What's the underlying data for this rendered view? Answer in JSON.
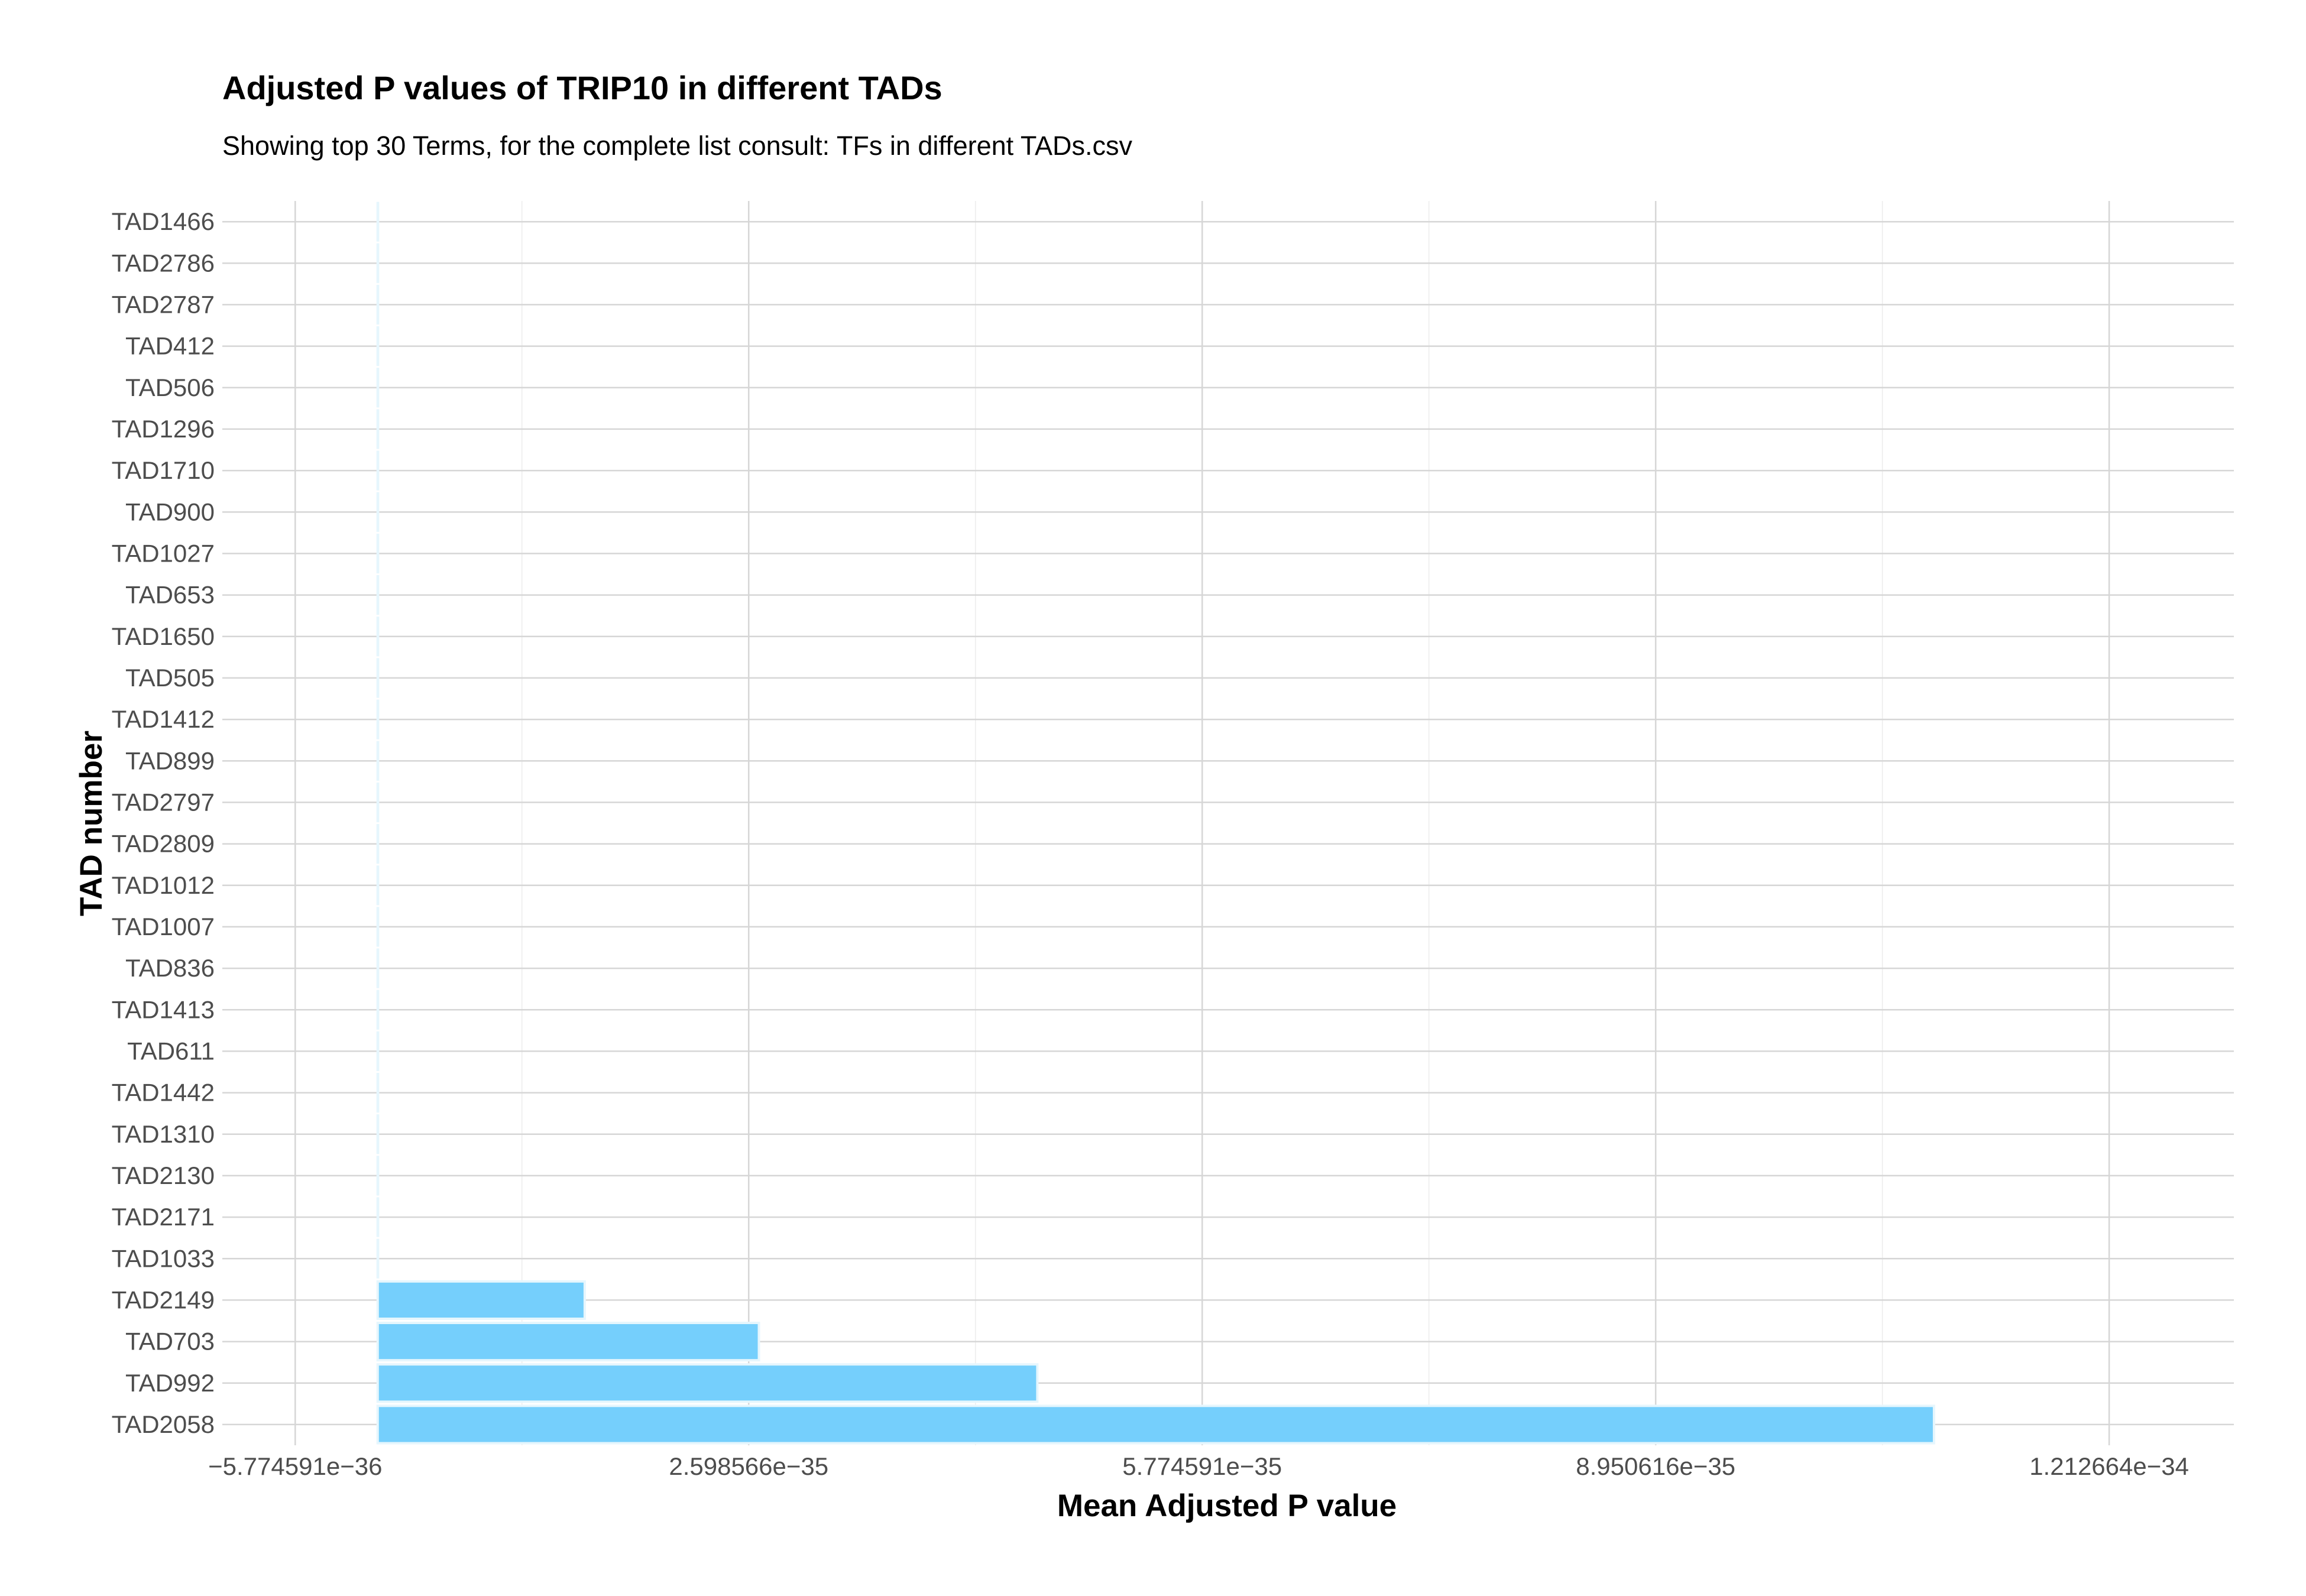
{
  "chart_data": {
    "type": "bar",
    "orientation": "horizontal",
    "title": "Adjusted P values of TRIP10 in different TADs",
    "subtitle": "Showing top 30 Terms, for the complete list consult: TFs in different TADs.csv",
    "xlabel": "Mean Adjusted P value",
    "ylabel": "TAD number",
    "categories": [
      "TAD1466",
      "TAD2786",
      "TAD2787",
      "TAD412",
      "TAD506",
      "TAD1296",
      "TAD1710",
      "TAD900",
      "TAD1027",
      "TAD653",
      "TAD1650",
      "TAD505",
      "TAD1412",
      "TAD899",
      "TAD2797",
      "TAD2809",
      "TAD1012",
      "TAD1007",
      "TAD836",
      "TAD1413",
      "TAD611",
      "TAD1442",
      "TAD1310",
      "TAD2130",
      "TAD2171",
      "TAD1033",
      "TAD2149",
      "TAD703",
      "TAD992",
      "TAD2058"
    ],
    "values": [
      1e-120,
      1e-115,
      1e-110,
      1e-105,
      1e-100,
      1e-95,
      1e-90,
      1e-85,
      1e-80,
      1e-75,
      1e-70,
      1e-65,
      1e-60,
      1e-55,
      1e-50,
      1e-47,
      1e-45,
      1e-44,
      1e-43,
      1e-42,
      1e-41,
      1e-40,
      5e-40,
      1e-39,
      5e-39,
      1e-38,
      1.45e-35,
      2.67e-35,
      4.62e-35,
      1.09e-34
    ],
    "xlim": [
      -1.088e-35,
      1.3e-34
    ],
    "x_ticks": [
      -5.774591e-36,
      2.598566e-35,
      5.774591e-35,
      8.950616e-35,
      1.212664e-34
    ],
    "x_tick_labels": [
      "−5.774591e−36",
      "2.598566e−35",
      "5.774591e−35",
      "8.950616e−35",
      "1.212664e−34"
    ],
    "grid": true,
    "legend": "none",
    "bar_color": "#75cffc",
    "bar_edge_color": "#e6f6fd"
  }
}
